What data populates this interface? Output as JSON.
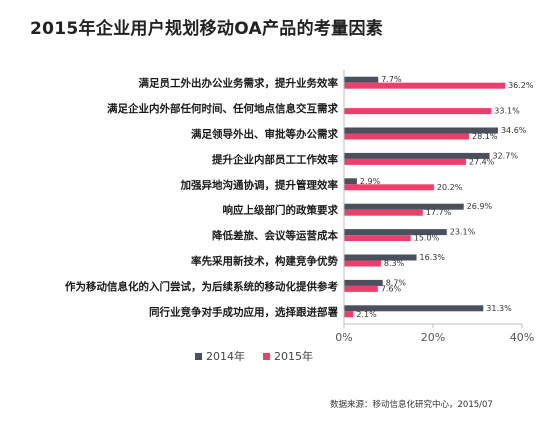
{
  "title": "2015年企业用户规划移动OA产品的考量因素",
  "source": "数据来源：移动信息化研究中心，2015/07",
  "colors": {
    "s2014": "#4a505c",
    "s2015": "#ee3f6c",
    "axis": "#bfbfbf"
  },
  "chart_data": {
    "type": "bar",
    "orientation": "horizontal",
    "categories": [
      "满足员工外出办公业务需求，提升业务效率",
      "满足企业内外部任何时间、任何地点信息交互需求",
      "满足领导外出、审批等办公需求",
      "提升企业内部员工工作效率",
      "加强异地沟通协调，提升管理效率",
      "响应上级部门的政策要求",
      "降低差旅、会议等运营成本",
      "率先采用新技术，构建竞争优势",
      "作为移动信息化的入门尝试，为后续系统的移动化提供参考",
      "同行业竞争对手成功应用，选择跟进部署"
    ],
    "series": [
      {
        "name": "2014年",
        "values": [
          7.7,
          null,
          34.6,
          32.7,
          2.9,
          26.9,
          23.1,
          16.3,
          8.7,
          31.3
        ],
        "labels": [
          "7.7%",
          "",
          "34.6%",
          "32.7%",
          "2.9%",
          "26.9%",
          "23.1%",
          "16.3%",
          "8.7%",
          "31.3%"
        ]
      },
      {
        "name": "2015年",
        "values": [
          36.2,
          33.1,
          28.1,
          27.4,
          20.2,
          17.7,
          15.0,
          8.3,
          7.6,
          2.1
        ],
        "labels": [
          "36.2%",
          "33.1%",
          "28.1%",
          "27.4%",
          "20.2%",
          "17.7%",
          "15.0%",
          "8.3%",
          "7.6%",
          "2.1%"
        ]
      }
    ],
    "xlim": [
      0,
      40
    ],
    "xticks": [
      0,
      20,
      40
    ],
    "xtick_labels": [
      "0%",
      "20%",
      "40%"
    ],
    "grid": false,
    "legend_position": "bottom"
  }
}
